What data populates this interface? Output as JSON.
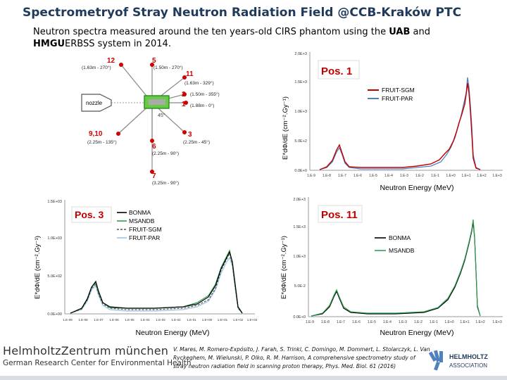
{
  "title": {
    "part1": "Spectrometry",
    "part2": "of Stray Neutron Radiation Field @",
    "part3": "CCB-Kraków PTC"
  },
  "subtitle": {
    "line1a": "Neutron spectra measured around the ten years-old CIRS phantom using the ",
    "uab": "UAB",
    "and": " and",
    "hmgu": "HMGU",
    "line2": "ERBSS system in 2014."
  },
  "diagram": {
    "nozzle_label": "nozzle",
    "angle_label": "45°",
    "positions": [
      {
        "num": "12",
        "desc": "(1.63m - 270°)"
      },
      {
        "num": "5",
        "desc": "(1.50m - 270°)"
      },
      {
        "num": "11",
        "desc": "(1.63m - 329°)"
      },
      {
        "num": "2",
        "desc": "(1.50m - 355°)"
      },
      {
        "num": "1",
        "desc": "(1.88m - 0°)"
      },
      {
        "num": "9,10",
        "desc": "(2.25m - 135°)"
      },
      {
        "num": "3",
        "desc": "(2.25m - 45°)"
      },
      {
        "num": "6",
        "desc": "(2.25m - 90°)"
      },
      {
        "num": "7",
        "desc": "(3.25m - 90°)"
      }
    ]
  },
  "charts": {
    "pos1": {
      "panel_label": "Pos. 1",
      "ylabel": "E*dΦ/dE  (cm⁻².Gy⁻¹)",
      "xlabel": "Neutron Energy (MeV)",
      "yticks": [
        "0.0E+0",
        "5.0E+2",
        "1.0E+3",
        "1.5E+3",
        "2.0E+3"
      ],
      "xticks": [
        "1.E-9",
        "1.E-8",
        "1.E-7",
        "1.E-6",
        "1.E-5",
        "1.E-4",
        "1.E-3",
        "1.E-2",
        "1.E-1",
        "1.E+0",
        "1.E+1",
        "1.E+2",
        "1.E+3"
      ],
      "legend": [
        "FRUIT-SGM",
        "FRUIT-PAR"
      ],
      "colors": [
        "#c00000",
        "#4f81bd"
      ]
    },
    "pos3": {
      "panel_label": "Pos. 3",
      "ylabel": "E*dΦ/dE  (cm⁻².Gy⁻¹)",
      "xlabel": "Neutron Energy (MeV)",
      "yticks": [
        "0.0E+00",
        "5.0E+02",
        "1.0E+03",
        "1.5E+03"
      ],
      "xticks": [
        "1.E-09",
        "1.E-08",
        "1.E-07",
        "1.E-06",
        "1.E-05",
        "1.E-04",
        "1.E-03",
        "1.E-02",
        "1.E-01",
        "1.E+00",
        "1.E+01",
        "1.E+02",
        "1.E+03"
      ],
      "legend": [
        "BONMA",
        "MSANDB",
        "FRUIT-SGM",
        "FRUIT-PAR"
      ],
      "colors": [
        "#000000",
        "#2e9e4f",
        "#555555",
        "#9dc3e6"
      ]
    },
    "pos11": {
      "panel_label": "Pos. 11",
      "ylabel": "E*dΦ/dE  (cm⁻².Gy⁻¹)",
      "xlabel": "Neutron Energy (MeV)",
      "yticks": [
        "0.0E+0",
        "5.0E-2",
        "1.0E+3",
        "1.5E+3",
        "2.0E+3"
      ],
      "xticks": [
        "1.E-9",
        "1.E-8",
        "1.E-7",
        "1.E-6",
        "1.E-5",
        "1.E-4",
        "1.E-3",
        "1.E-2",
        "1.E-1",
        "1.E+0",
        "1.E+1",
        "1.E+2",
        "1.E+3"
      ],
      "legend": [
        "BONMA",
        "MSANDB"
      ],
      "colors": [
        "#000000",
        "#2e9e4f"
      ]
    }
  },
  "footer": {
    "logo_main": "HelmholtzZentrum münchen",
    "logo_sub": "German Research Center for Environmental Health",
    "citation": "V. Mares, M. Romero-Expósito, J. Farah, S. Trinkl, C. Domingo, M. Dommert, L. Stolarczyk, L. Van Ryckeghem, M. Wielunski, P. Olko, R. M. Harrison, A comprehensive spectrometry study of stray neutron radiation field in scanning proton therapy, Phys. Med. Biol. 61 (2016)",
    "hz_logo_l1": "HELMHOLTZ",
    "hz_logo_l2": "ASSOCIATION"
  }
}
